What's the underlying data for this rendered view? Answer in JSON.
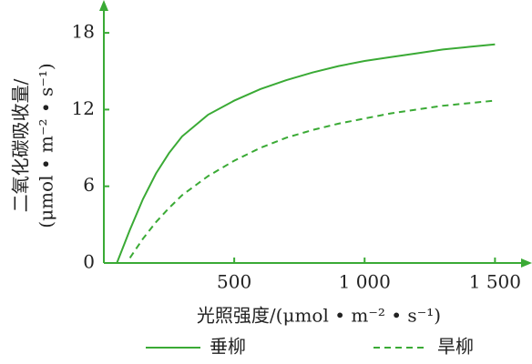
{
  "chart_data": {
    "type": "line",
    "x_label": "光照强度/(μmol • m⁻² • s⁻¹)",
    "y_label": [
      "二氧化碳吸收量/",
      "(μmol • m⁻² • s⁻¹)"
    ],
    "x": [
      50,
      100,
      150,
      200,
      250,
      300,
      400,
      500,
      600,
      700,
      800,
      900,
      1000,
      1100,
      1200,
      1300,
      1400,
      1500
    ],
    "series": [
      {
        "name": "垂柳",
        "color": "#3aaa35",
        "dash": false,
        "values": [
          0,
          2.6,
          5.0,
          7.0,
          8.6,
          9.9,
          11.6,
          12.7,
          13.6,
          14.3,
          14.9,
          15.4,
          15.8,
          16.1,
          16.4,
          16.7,
          16.9,
          17.1
        ]
      },
      {
        "name": "旱柳",
        "color": "#3aaa35",
        "dash": true,
        "values": [
          null,
          0.4,
          1.9,
          3.2,
          4.3,
          5.3,
          6.8,
          8.0,
          9.0,
          9.8,
          10.4,
          10.9,
          11.3,
          11.7,
          12.0,
          12.3,
          12.5,
          12.7
        ]
      }
    ],
    "xlim": [
      0,
      1600
    ],
    "ylim": [
      0,
      20
    ],
    "xticks": [
      500,
      {
        "value": 1000,
        "label": "1 000"
      },
      {
        "value": 1500,
        "label": "1 500"
      }
    ],
    "yticks": [
      0,
      6,
      12,
      18
    ],
    "axis_color": "#3aaa35"
  }
}
